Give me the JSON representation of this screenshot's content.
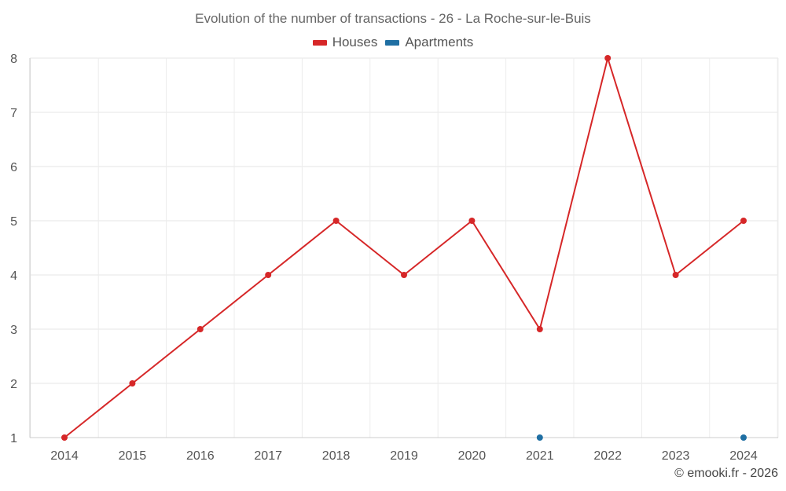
{
  "chart_data": {
    "type": "line",
    "title": "Evolution of the number of transactions - 26 - La Roche-sur-le-Buis",
    "x": [
      "2014",
      "2015",
      "2016",
      "2017",
      "2018",
      "2019",
      "2020",
      "2021",
      "2022",
      "2023",
      "2024"
    ],
    "ylim": [
      1,
      8
    ],
    "yticks": [
      1,
      2,
      3,
      4,
      5,
      6,
      7,
      8
    ],
    "grid": true,
    "legend_position": "top-center",
    "series": [
      {
        "name": "Houses",
        "color": "#d62728",
        "values": [
          1,
          2,
          3,
          4,
          5,
          4,
          5,
          3,
          8,
          4,
          5
        ]
      },
      {
        "name": "Apartments",
        "color": "#1f6fa3",
        "values": [
          null,
          null,
          null,
          null,
          null,
          null,
          null,
          1,
          null,
          null,
          1
        ]
      }
    ]
  },
  "footer": {
    "credit": "© emooki.fr - 2026"
  }
}
